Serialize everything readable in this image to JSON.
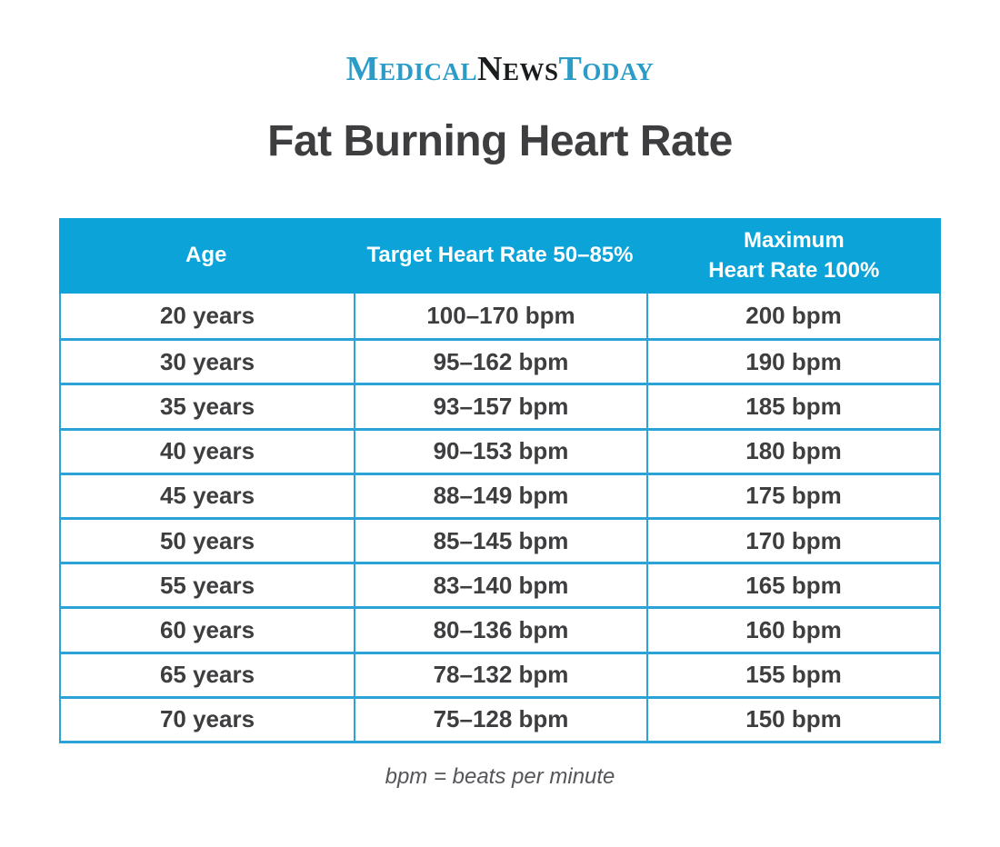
{
  "theme": {
    "accent": "#0ca3d8",
    "border": "#2ba3d6",
    "ink": "#3e3e40",
    "logo_blue": "#2b9cc7",
    "logo_dark": "#1b1c1e",
    "muted": "#55565a",
    "background": "#ffffff"
  },
  "logo": {
    "medical": "Medical",
    "news": "News",
    "today": "Today"
  },
  "header_display": {
    "col3_line1": "Maximum",
    "col3_line2": "Heart Rate 100%"
  },
  "chart_data": {
    "type": "table",
    "title": "Fat Burning Heart Rate",
    "columns": [
      "Age",
      "Target Heart Rate 50–85%",
      "Maximum Heart Rate 100%"
    ],
    "rows": [
      [
        "20 years",
        "100–170 bpm",
        "200 bpm"
      ],
      [
        "30 years",
        "95–162 bpm",
        "190 bpm"
      ],
      [
        "35 years",
        "93–157 bpm",
        "185 bpm"
      ],
      [
        "40 years",
        "90–153 bpm",
        "180 bpm"
      ],
      [
        "45 years",
        "88–149 bpm",
        "175 bpm"
      ],
      [
        "50 years",
        "85–145 bpm",
        "170 bpm"
      ],
      [
        "55 years",
        "83–140 bpm",
        "165 bpm"
      ],
      [
        "60 years",
        "80–136 bpm",
        "160 bpm"
      ],
      [
        "65 years",
        "78–132 bpm",
        "155 bpm"
      ],
      [
        "70 years",
        "75–128 bpm",
        "150 bpm"
      ]
    ],
    "footnote": "bpm = beats per minute"
  }
}
